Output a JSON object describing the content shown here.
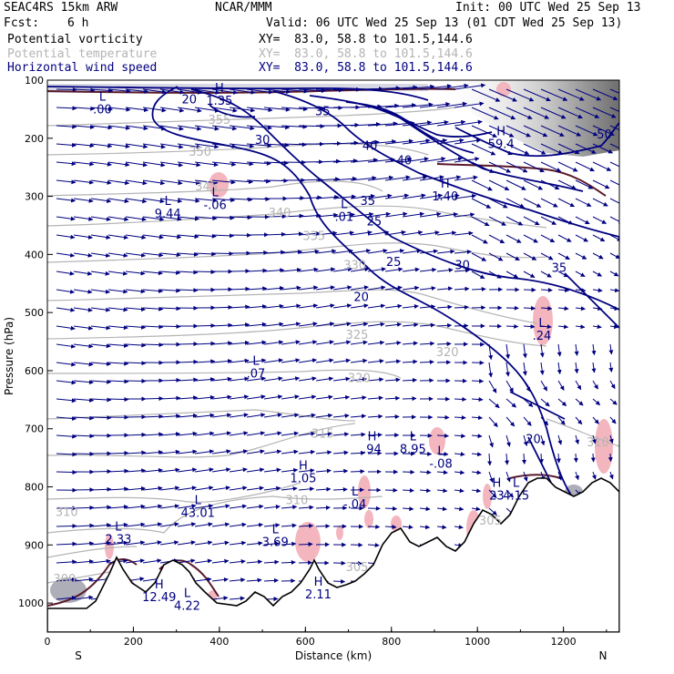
{
  "header": {
    "model": "SEAC4RS 15km ARW",
    "center": "NCAR/MMM",
    "init": "Init: 00 UTC Wed 25 Sep 13",
    "fcst_label": "Fcst:",
    "fcst_value": "6 h",
    "valid": "Valid: 06 UTC Wed 25 Sep 13 (01 CDT Wed 25 Sep 13)",
    "fields": [
      {
        "name": "Potential vorticity",
        "xy": "XY=  83.0, 58.8 to 101.5,144.6",
        "color": "#000000"
      },
      {
        "name": "Potential temperature",
        "xy": "XY=  83.0, 58.8 to 101.5,144.6",
        "color": "#b4b4b4"
      },
      {
        "name": "Horizontal wind speed",
        "xy": "XY=  83.0, 58.8 to 101.5,144.6",
        "color": "#000080"
      }
    ]
  },
  "chart_data": {
    "type": "cross-section",
    "xlabel": "Distance (km)",
    "ylabel": "Pressure (hPa)",
    "xlim": [
      0,
      1330
    ],
    "ylim": [
      1050,
      100
    ],
    "xticks": [
      "0",
      "200",
      "400",
      "600",
      "800",
      "1000",
      "1200"
    ],
    "yticks": [
      "100",
      "200",
      "300",
      "400",
      "500",
      "600",
      "700",
      "800",
      "900",
      "1000"
    ],
    "endpoints": {
      "left": "S",
      "right": "N"
    },
    "colors": {
      "wind": "#000080",
      "theta": "#b4b4b4",
      "pv": "#5a1a2a",
      "pv_positive": "#f4b6be",
      "pv_high": "#8c8c8c"
    },
    "wind_speed_labels": [
      {
        "text": "20",
        "x": 330,
        "p": 140
      },
      {
        "text": "35",
        "x": 640,
        "p": 160
      },
      {
        "text": "30",
        "x": 500,
        "p": 210
      },
      {
        "text": "40",
        "x": 750,
        "p": 220
      },
      {
        "text": "40",
        "x": 830,
        "p": 245
      },
      {
        "text": "50",
        "x": 1295,
        "p": 200
      },
      {
        "text": "35",
        "x": 745,
        "p": 315
      },
      {
        "text": "25",
        "x": 760,
        "p": 350
      },
      {
        "text": "25",
        "x": 805,
        "p": 420
      },
      {
        "text": "30",
        "x": 965,
        "p": 425
      },
      {
        "text": "35",
        "x": 1190,
        "p": 430
      },
      {
        "text": "20",
        "x": 730,
        "p": 480
      },
      {
        "text": "20",
        "x": 1130,
        "p": 725
      }
    ],
    "theta_labels": [
      {
        "text": "355",
        "x": 400,
        "p": 175
      },
      {
        "text": "350",
        "x": 355,
        "p": 230
      },
      {
        "text": "345",
        "x": 370,
        "p": 290
      },
      {
        "text": "340",
        "x": 540,
        "p": 335
      },
      {
        "text": "335",
        "x": 620,
        "p": 375
      },
      {
        "text": "330",
        "x": 715,
        "p": 425
      },
      {
        "text": "325",
        "x": 720,
        "p": 545
      },
      {
        "text": "320",
        "x": 930,
        "p": 575
      },
      {
        "text": "320",
        "x": 725,
        "p": 620
      },
      {
        "text": "315",
        "x": 640,
        "p": 715
      },
      {
        "text": "310",
        "x": 45,
        "p": 850
      },
      {
        "text": "310",
        "x": 580,
        "p": 830
      },
      {
        "text": "305",
        "x": 720,
        "p": 945
      },
      {
        "text": "305",
        "x": 1030,
        "p": 865
      },
      {
        "text": "300",
        "x": 40,
        "p": 965
      },
      {
        "text": "310",
        "x": 1280,
        "p": 730
      }
    ],
    "extrema": [
      {
        "kind": "L",
        "value": ".00",
        "x": 128,
        "p": 135
      },
      {
        "kind": "H",
        "value": "1.35",
        "x": 400,
        "p": 120
      },
      {
        "kind": "H",
        "value": "59.4",
        "x": 1055,
        "p": 195
      },
      {
        "kind": "L",
        "value": "9.44",
        "x": 280,
        "p": 315
      },
      {
        "kind": "L",
        "value": "-.06",
        "x": 390,
        "p": 300
      },
      {
        "kind": "L",
        "value": ".01",
        "x": 690,
        "p": 320
      },
      {
        "kind": "H",
        "value": "1.40",
        "x": 925,
        "p": 285
      },
      {
        "kind": "L",
        "value": ".24",
        "x": 1150,
        "p": 525
      },
      {
        "kind": "L",
        "value": ".07",
        "x": 485,
        "p": 590
      },
      {
        "kind": "H",
        "value": ".94",
        "x": 755,
        "p": 720
      },
      {
        "kind": "L",
        "value": "8.95",
        "x": 850,
        "p": 720
      },
      {
        "kind": "L",
        "value": "-.08",
        "x": 915,
        "p": 745
      },
      {
        "kind": "H",
        "value": "1.05",
        "x": 595,
        "p": 770
      },
      {
        "kind": "L",
        "value": "-.04",
        "x": 715,
        "p": 815
      },
      {
        "kind": "H",
        "value": "23",
        "x": 1045,
        "p": 800
      },
      {
        "kind": "L",
        "value": "4.15",
        "x": 1090,
        "p": 800
      },
      {
        "kind": "L",
        "value": "43.01",
        "x": 350,
        "p": 830
      },
      {
        "kind": "L",
        "value": "2.33",
        "x": 165,
        "p": 875
      },
      {
        "kind": "L",
        "value": "3.69",
        "x": 530,
        "p": 880
      },
      {
        "kind": "H",
        "value": "12.49",
        "x": 260,
        "p": 975
      },
      {
        "kind": "L",
        "value": "4.22",
        "x": 325,
        "p": 990
      },
      {
        "kind": "H",
        "value": "2.11",
        "x": 630,
        "p": 970
      }
    ]
  }
}
